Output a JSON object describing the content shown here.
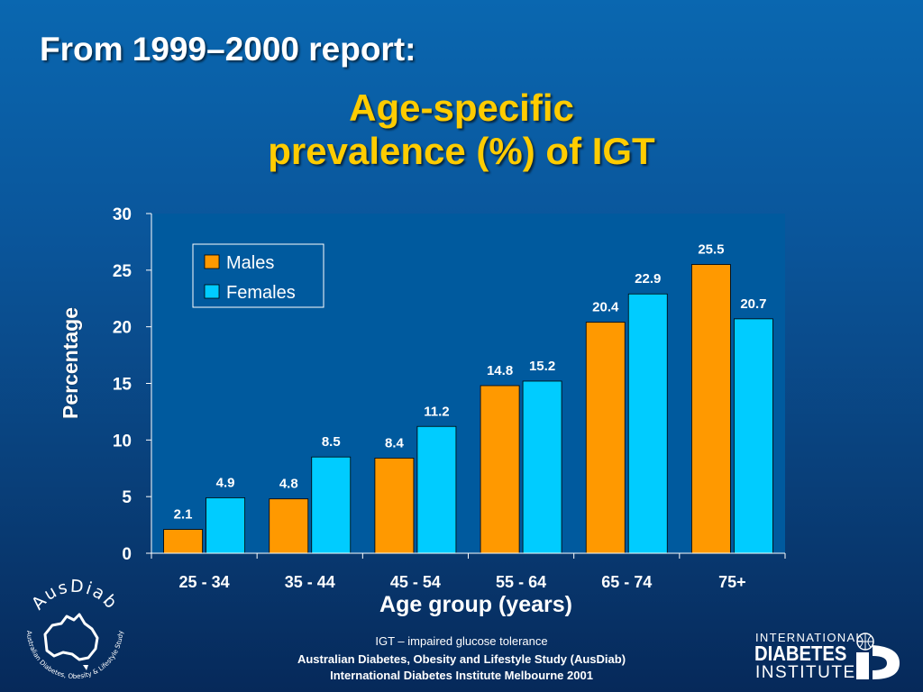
{
  "slide": {
    "header": "From 1999–2000 report:",
    "title_line1": "Age-specific",
    "title_line2": "prevalence (%) of IGT"
  },
  "chart_data": {
    "type": "bar",
    "categories": [
      "25 - 34",
      "35 - 44",
      "45 - 54",
      "55 - 64",
      "65 - 74",
      "75+"
    ],
    "series": [
      {
        "name": "Males",
        "values": [
          2.1,
          4.8,
          8.4,
          14.8,
          20.4,
          25.5
        ],
        "color": "#ff9900"
      },
      {
        "name": "Females",
        "values": [
          4.9,
          8.5,
          11.2,
          15.2,
          22.9,
          20.7
        ],
        "color": "#00ccff"
      }
    ],
    "data_labels": {
      "Males": [
        "2.1",
        "4.8",
        "8.4",
        "14.8",
        "20.4",
        "25.5"
      ],
      "Females": [
        "4.9",
        "8.5",
        "11.2",
        "15.2",
        "22.9",
        "20.7"
      ]
    },
    "xlabel": "Age group (years)",
    "ylabel": "Percentage",
    "ylim": [
      0,
      30
    ],
    "yticks": [
      0,
      5,
      10,
      15,
      20,
      25,
      30
    ],
    "ytick_labels": [
      "0",
      "5",
      "10",
      "15",
      "20",
      "25",
      "30"
    ],
    "legend_position": "top-left",
    "grid": false,
    "plot_background": "#005a9e"
  },
  "footer": {
    "note": "IGT – impaired glucose tolerance",
    "study": "Australian Diabetes, Obesity and Lifestyle Study (AusDiab)",
    "institute": "International Diabetes Institute Melbourne 2001"
  },
  "logos": {
    "ausdiab_name": "AusDiab",
    "ausdiab_tagline": "Australian Diabetes, Obesity & Lifestyle Study",
    "idi_line1": "INTERNATIONAL",
    "idi_line2": "DIABETES",
    "idi_line3": "INSTITUTE"
  }
}
